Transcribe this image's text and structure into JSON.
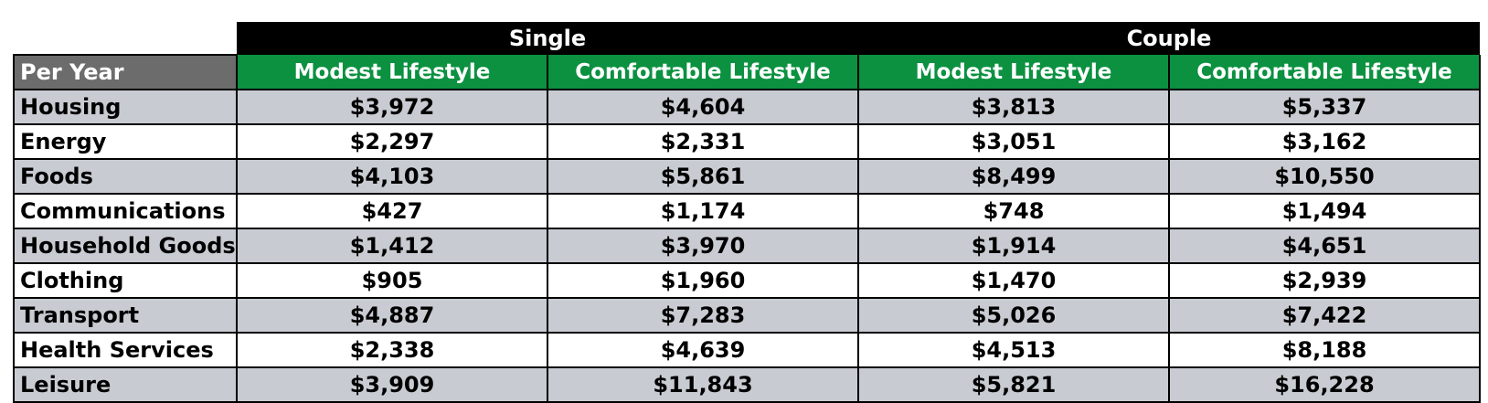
{
  "table": {
    "groups": [
      "Single",
      "Couple"
    ],
    "corner_label": "Per Year",
    "sub_headers": [
      "Modest Lifestyle",
      "Comfortable Lifestyle",
      "Modest Lifestyle",
      "Comfortable Lifestyle"
    ],
    "rows": [
      {
        "label": "Housing",
        "values": [
          "$3,972",
          "$4,604",
          "$3,813",
          "$5,337"
        ]
      },
      {
        "label": "Energy",
        "values": [
          "$2,297",
          "$2,331",
          "$3,051",
          "$3,162"
        ]
      },
      {
        "label": "Foods",
        "values": [
          "$4,103",
          "$5,861",
          "$8,499",
          "$10,550"
        ]
      },
      {
        "label": "Communications",
        "values": [
          "$427",
          "$1,174",
          "$748",
          "$1,494"
        ]
      },
      {
        "label": "Household Goods",
        "values": [
          "$1,412",
          "$3,970",
          "$1,914",
          "$4,651"
        ]
      },
      {
        "label": "Clothing",
        "values": [
          "$905",
          "$1,960",
          "$1,470",
          "$2,939"
        ]
      },
      {
        "label": "Transport",
        "values": [
          "$4,887",
          "$7,283",
          "$5,026",
          "$7,422"
        ]
      },
      {
        "label": "Health Services",
        "values": [
          "$2,338",
          "$4,639",
          "$4,513",
          "$8,188"
        ]
      },
      {
        "label": "Leisure",
        "values": [
          "$3,909",
          "$11,843",
          "$5,821",
          "$16,228"
        ]
      }
    ],
    "colors": {
      "group_header_bg": "#000000",
      "sub_header_bg": "#0b9140",
      "corner_bg": "#6c6c6c",
      "shaded_row_bg": "#c8ccd2",
      "plain_row_bg": "#ffffff"
    }
  }
}
